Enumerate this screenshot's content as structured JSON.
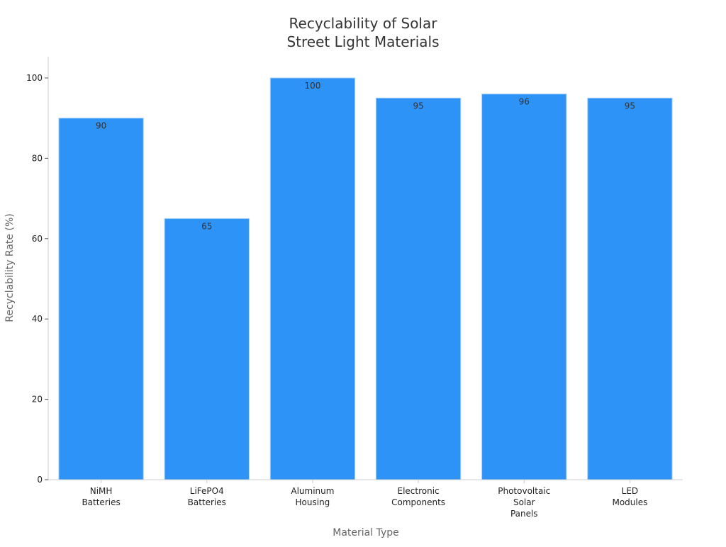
{
  "chart_data": {
    "type": "bar",
    "title": [
      "Recyclability of Solar",
      "Street Light Materials"
    ],
    "xlabel": "Material Type",
    "ylabel": "Recyclability Rate (%)",
    "categories": [
      [
        "NiMH",
        "Batteries"
      ],
      [
        "LiFePO4",
        "Batteries"
      ],
      [
        "Aluminum",
        "Housing"
      ],
      [
        "Electronic",
        "Components"
      ],
      [
        "Photovoltaic",
        "Solar",
        "Panels"
      ],
      [
        "LED",
        "Modules"
      ]
    ],
    "values": [
      90,
      65,
      100,
      95,
      96,
      95
    ],
    "data_labels": [
      "90",
      "65",
      "100",
      "95",
      "96",
      "95"
    ],
    "ylim": [
      0,
      105
    ],
    "yticks": [
      0,
      20,
      40,
      60,
      80,
      100
    ],
    "grid": false,
    "legend": "none",
    "bar_color": "#2e93f7",
    "bar_edge_color": "#a9d2fb"
  }
}
